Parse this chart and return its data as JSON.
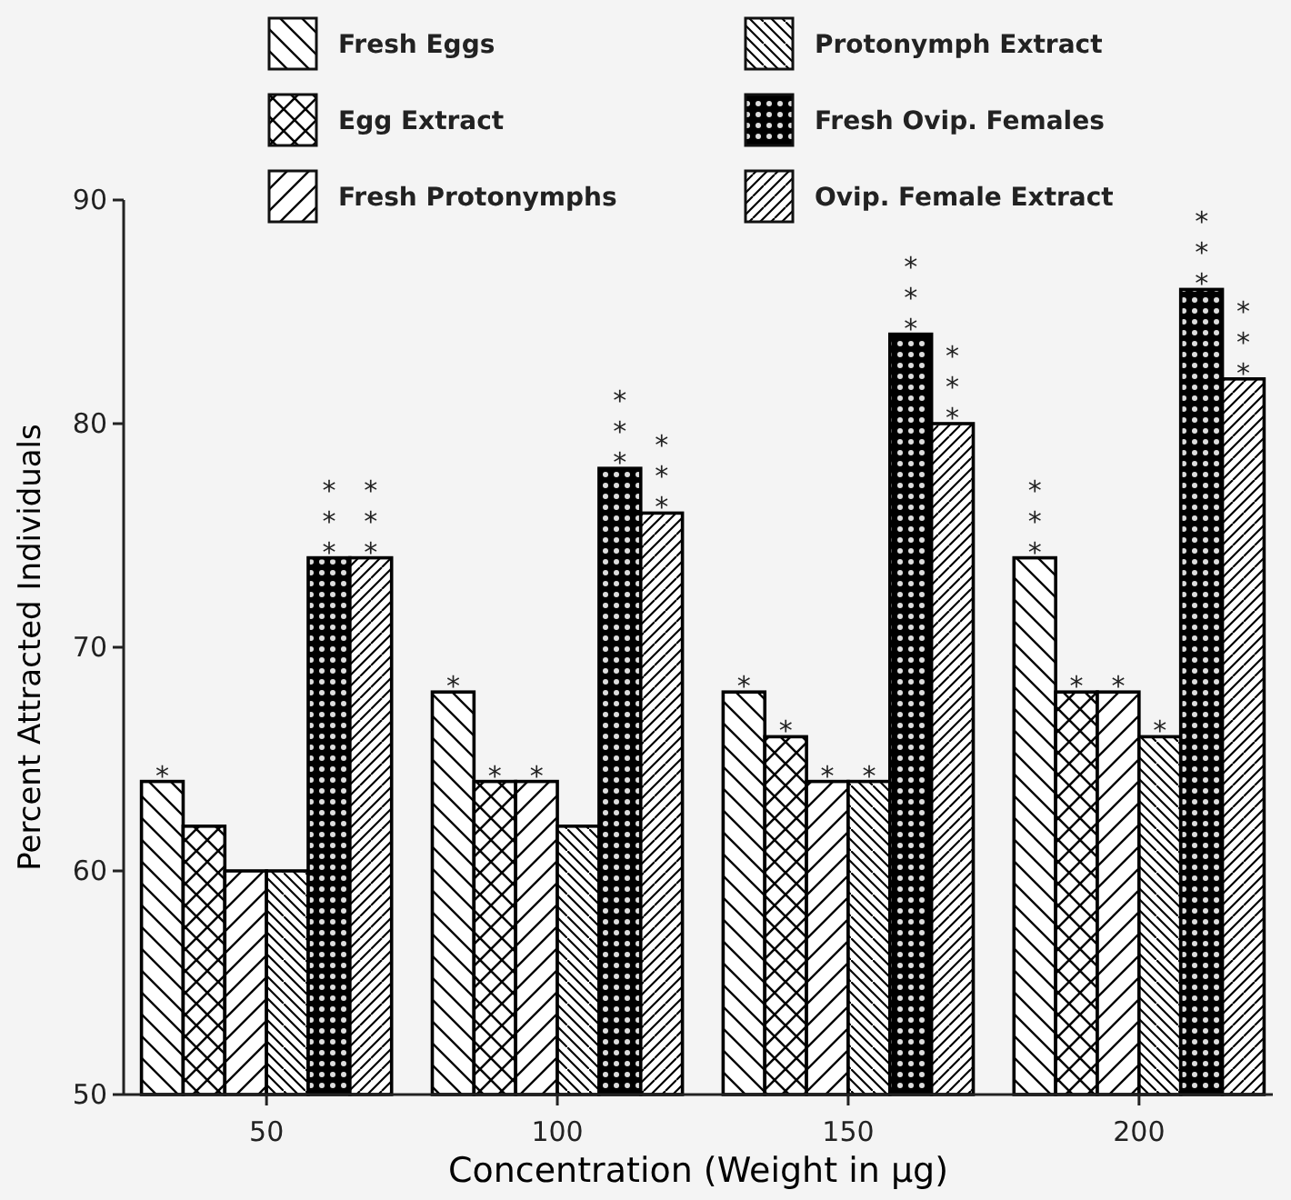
{
  "chart_data": {
    "type": "bar",
    "xlabel": "Concentration (Weight in µg)",
    "ylabel": "Percent Attracted Individuals",
    "categories": [
      "50",
      "100",
      "150",
      "200"
    ],
    "ylim": [
      50,
      90
    ],
    "yticks": [
      50,
      60,
      70,
      80,
      90
    ],
    "grid": false,
    "legend": "top",
    "series": [
      {
        "name": "Fresh Eggs",
        "color": "#000000",
        "values": [
          64,
          68,
          68,
          74
        ],
        "value_labels": [
          "*",
          "*",
          "*",
          "***"
        ]
      },
      {
        "name": "Egg Extract",
        "color": "#000000",
        "values": [
          62,
          64,
          66,
          68
        ],
        "value_labels": [
          null,
          "*",
          "*",
          "*"
        ]
      },
      {
        "name": "Fresh Protonymphs",
        "color": "#000000",
        "values": [
          60,
          64,
          64,
          68
        ],
        "value_labels": [
          null,
          "*",
          "*",
          "*"
        ]
      },
      {
        "name": "Protonymph Extract",
        "color": "#000000",
        "values": [
          60,
          62,
          64,
          66
        ],
        "value_labels": [
          null,
          null,
          "*",
          "*"
        ]
      },
      {
        "name": "Fresh Ovip. Females",
        "color": "#000000",
        "values": [
          74,
          78,
          84,
          86
        ],
        "value_labels": [
          "***",
          "***",
          "***",
          "***"
        ]
      },
      {
        "name": "Ovip. Female Extract",
        "color": "#000000",
        "values": [
          74,
          76,
          80,
          82
        ],
        "value_labels": [
          "***",
          "***",
          "***",
          "***"
        ]
      }
    ]
  }
}
